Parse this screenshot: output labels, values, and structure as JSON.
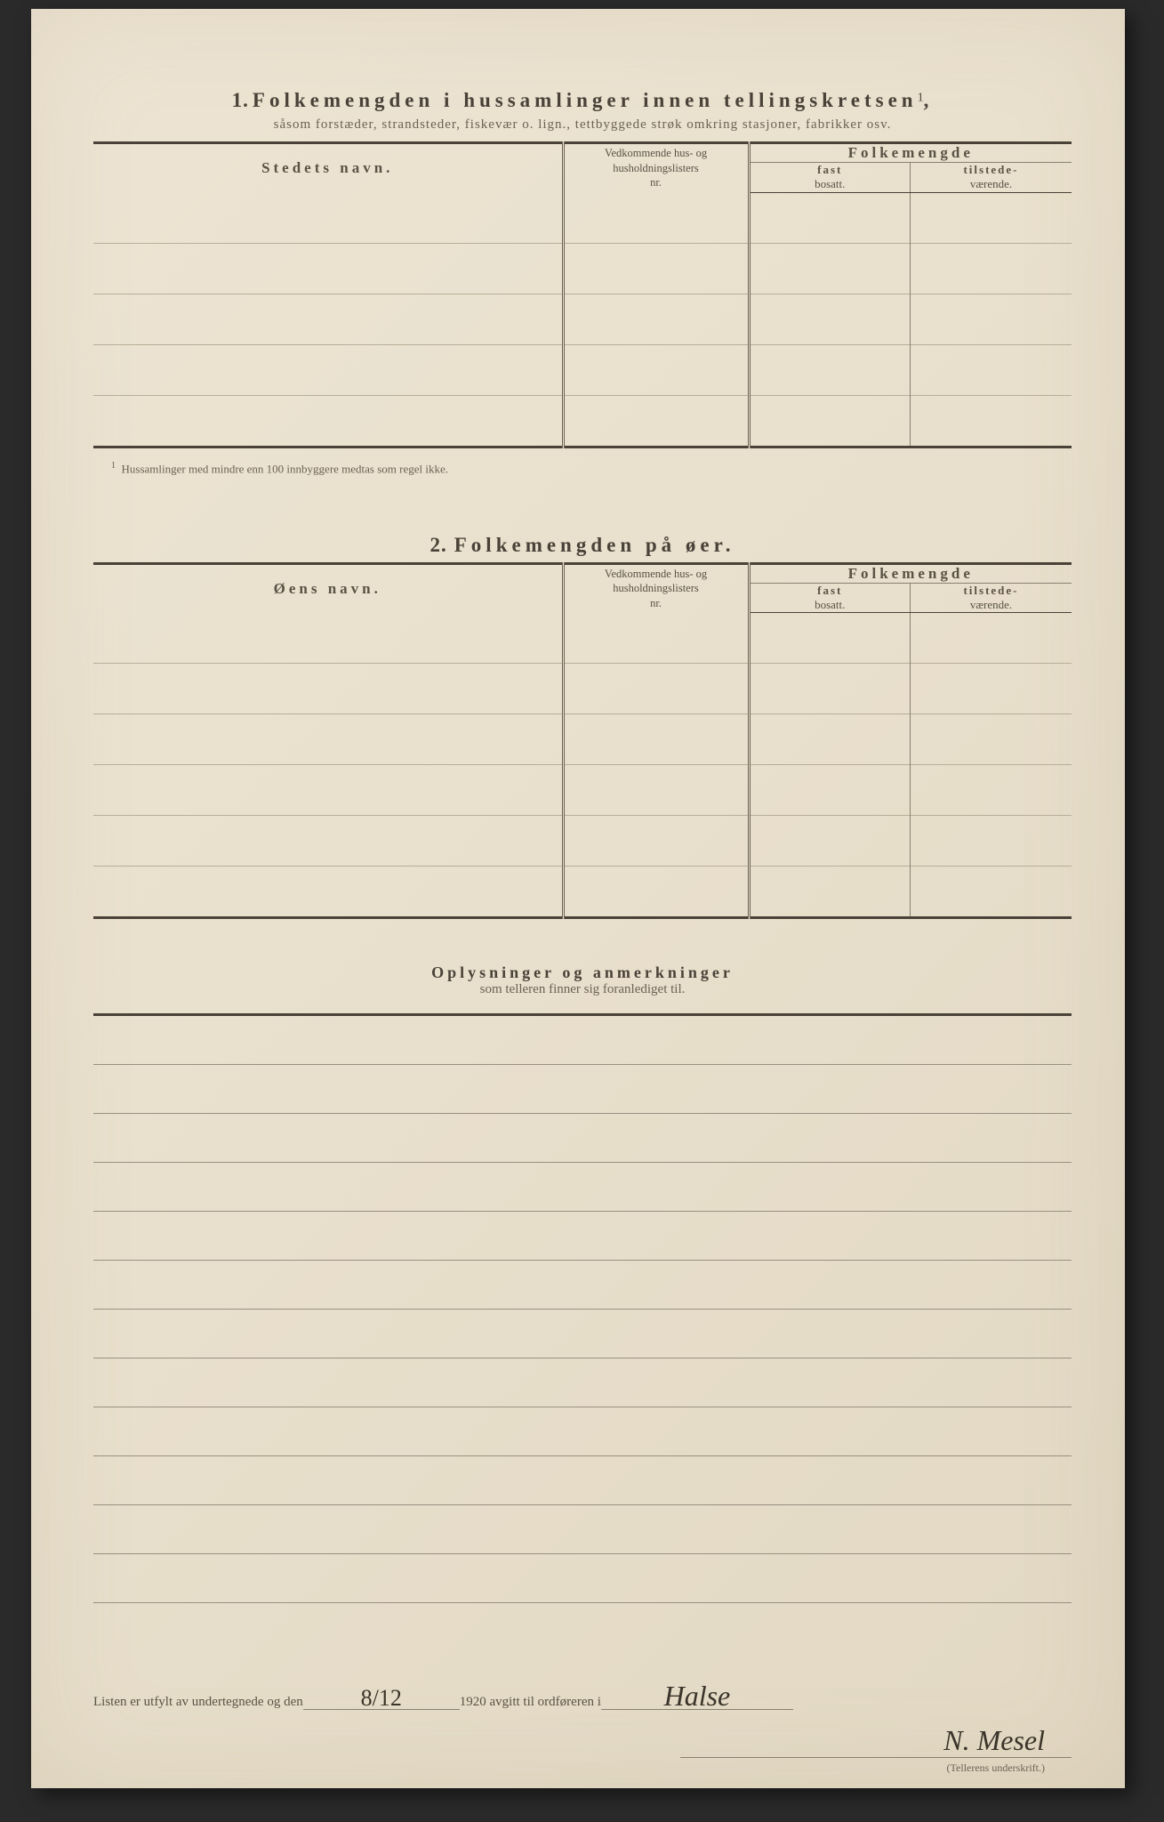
{
  "page": {
    "background_color": "#2a2a2a",
    "paper_color": "#e8dfcc",
    "text_color": "#4a4238",
    "rule_color": "#8a8070"
  },
  "section1": {
    "number": "1.",
    "title": "Folkemengden i hussamlinger innen tellingskretsen",
    "title_sup": "1",
    "title_end": ",",
    "subtitle": "såsom forstæder, strandsteder, fiskevær o. lign., tettbyggede strøk omkring stasjoner, fabrikker osv.",
    "col_name": "Stedets navn.",
    "col_vedk_l1": "Vedkommende hus- og",
    "col_vedk_l2": "husholdningslisters",
    "col_vedk_l3": "nr.",
    "col_folk": "Folkemengde",
    "col_fast_b": "fast",
    "col_fast": "bosatt.",
    "col_tilst_b": "tilstede-",
    "col_tilst": "værende.",
    "row_count": 5,
    "footnote_sup": "1",
    "footnote": "Hussamlinger med mindre enn 100 innbyggere medtas som regel ikke."
  },
  "section2": {
    "number": "2.",
    "title": "Folkemengden på øer.",
    "col_name": "Øens navn.",
    "col_vedk_l1": "Vedkommende hus- og",
    "col_vedk_l2": "husholdningslisters",
    "col_vedk_l3": "nr.",
    "col_folk": "Folkemengde",
    "col_fast_b": "fast",
    "col_fast": "bosatt.",
    "col_tilst_b": "tilstede-",
    "col_tilst": "værende.",
    "row_count": 6
  },
  "section3": {
    "title": "Oplysninger og anmerkninger",
    "subtitle": "som telleren finner sig foranlediget til.",
    "line_count": 12
  },
  "signature": {
    "text1": "Listen er utfylt av undertegnede og den",
    "date_written": "8/12",
    "text2": "1920 avgitt til ordføreren i",
    "place_written": "Halse",
    "signer": "N. Mesel",
    "caption": "(Tellerens underskrift.)"
  }
}
